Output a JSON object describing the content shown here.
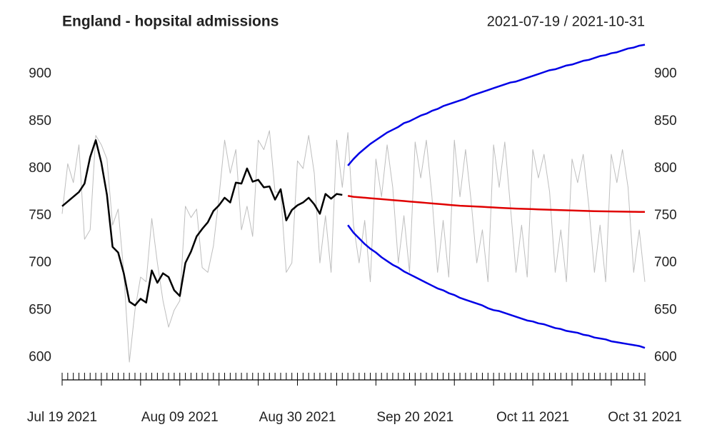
{
  "chart_data": {
    "type": "line",
    "title": "England - hopsital admissions",
    "subtitle": "2021-07-19 / 2021-10-31",
    "x": [
      "2021-07-19",
      "2021-07-20",
      "2021-07-21",
      "2021-07-22",
      "2021-07-23",
      "2021-07-24",
      "2021-07-25",
      "2021-07-26",
      "2021-07-27",
      "2021-07-28",
      "2021-07-29",
      "2021-07-30",
      "2021-07-31",
      "2021-08-01",
      "2021-08-02",
      "2021-08-03",
      "2021-08-04",
      "2021-08-05",
      "2021-08-06",
      "2021-08-07",
      "2021-08-08",
      "2021-08-09",
      "2021-08-10",
      "2021-08-11",
      "2021-08-12",
      "2021-08-13",
      "2021-08-14",
      "2021-08-15",
      "2021-08-16",
      "2021-08-17",
      "2021-08-18",
      "2021-08-19",
      "2021-08-20",
      "2021-08-21",
      "2021-08-22",
      "2021-08-23",
      "2021-08-24",
      "2021-08-25",
      "2021-08-26",
      "2021-08-27",
      "2021-08-28",
      "2021-08-29",
      "2021-08-30",
      "2021-08-31",
      "2021-09-01",
      "2021-09-02",
      "2021-09-03",
      "2021-09-04",
      "2021-09-05",
      "2021-09-06",
      "2021-09-07",
      "2021-09-08",
      "2021-09-09",
      "2021-09-10",
      "2021-09-11",
      "2021-09-12",
      "2021-09-13",
      "2021-09-14",
      "2021-09-15",
      "2021-09-16",
      "2021-09-17",
      "2021-09-18",
      "2021-09-19",
      "2021-09-20",
      "2021-09-21",
      "2021-09-22",
      "2021-09-23",
      "2021-09-24",
      "2021-09-25",
      "2021-09-26",
      "2021-09-27",
      "2021-09-28",
      "2021-09-29",
      "2021-09-30",
      "2021-10-01",
      "2021-10-02",
      "2021-10-03",
      "2021-10-04",
      "2021-10-05",
      "2021-10-06",
      "2021-10-07",
      "2021-10-08",
      "2021-10-09",
      "2021-10-10",
      "2021-10-11",
      "2021-10-12",
      "2021-10-13",
      "2021-10-14",
      "2021-10-15",
      "2021-10-16",
      "2021-10-17",
      "2021-10-18",
      "2021-10-19",
      "2021-10-20",
      "2021-10-21",
      "2021-10-22",
      "2021-10-23",
      "2021-10-24",
      "2021-10-25",
      "2021-10-26",
      "2021-10-27",
      "2021-10-28",
      "2021-10-29",
      "2021-10-30",
      "2021-10-31"
    ],
    "xlim": [
      "2021-07-19",
      "2021-10-31"
    ],
    "xticks": [
      {
        "value": "2021-07-19",
        "label": "Jul 19 2021"
      },
      {
        "value": "2021-08-09",
        "label": "Aug 09 2021"
      },
      {
        "value": "2021-08-30",
        "label": "Aug 30 2021"
      },
      {
        "value": "2021-09-20",
        "label": "Sep 20 2021"
      },
      {
        "value": "2021-10-11",
        "label": "Oct 11 2021"
      },
      {
        "value": "2021-10-31",
        "label": "Oct 31 2021"
      }
    ],
    "ylim": [
      589,
      933
    ],
    "yticks": [
      600,
      650,
      700,
      750,
      800,
      850,
      900
    ],
    "series": [
      {
        "color": "#bebebe",
        "width": 1,
        "values": [
          752,
          805,
          785,
          825,
          725,
          735,
          835,
          825,
          810,
          740,
          757,
          690,
          595,
          650,
          685,
          680,
          747,
          700,
          660,
          632,
          650,
          660,
          760,
          748,
          757,
          695,
          690,
          718,
          770,
          830,
          795,
          820,
          735,
          760,
          728,
          830,
          820,
          840,
          775,
          775,
          690,
          700,
          808,
          800,
          835,
          795,
          700,
          750,
          690,
          830,
          780,
          838,
          740,
          700,
          745,
          680,
          810,
          770,
          825,
          780,
          700,
          750,
          690,
          828,
          790,
          830,
          770,
          690,
          745,
          685,
          830,
          770,
          820,
          765,
          700,
          735,
          680,
          825,
          780,
          828,
          760,
          690,
          740,
          685,
          820,
          790,
          815,
          775,
          690,
          735,
          680,
          810,
          785,
          815,
          760,
          690,
          740,
          680,
          815,
          785,
          820,
          780,
          690,
          735,
          680
        ]
      },
      {
        "color": "#000000",
        "width": 2.5,
        "values": [
          760,
          765,
          770,
          775,
          784,
          812,
          830,
          806,
          772,
          717,
          711,
          689,
          659,
          655,
          662,
          658,
          692,
          679,
          689,
          685,
          671,
          665,
          700,
          712,
          728,
          736,
          743,
          755,
          761,
          769,
          764,
          785,
          784,
          800,
          786,
          788,
          780,
          781,
          767,
          778,
          745,
          756,
          761,
          764,
          769,
          762,
          752,
          773,
          768,
          773,
          772,
          null,
          null,
          null,
          null,
          null,
          null,
          null,
          null,
          null,
          null,
          null,
          null,
          null,
          null,
          null,
          null,
          null,
          null,
          null,
          null,
          null,
          null,
          null,
          null,
          null,
          null,
          null,
          null,
          null,
          null,
          null,
          null,
          null,
          null,
          null,
          null,
          null,
          null,
          null,
          null,
          null,
          null,
          null,
          null,
          null,
          null,
          null,
          null,
          null,
          null,
          null,
          null,
          null,
          null
        ]
      },
      {
        "color": "#e00000",
        "width": 2.5,
        "values": [
          null,
          null,
          null,
          null,
          null,
          null,
          null,
          null,
          null,
          null,
          null,
          null,
          null,
          null,
          null,
          null,
          null,
          null,
          null,
          null,
          null,
          null,
          null,
          null,
          null,
          null,
          null,
          null,
          null,
          null,
          null,
          null,
          null,
          null,
          null,
          null,
          null,
          null,
          null,
          null,
          null,
          null,
          null,
          null,
          null,
          null,
          null,
          null,
          null,
          null,
          null,
          771,
          770,
          769.5,
          769,
          768.5,
          768,
          767.5,
          767,
          766.5,
          766,
          765.5,
          765,
          764.5,
          764,
          763.5,
          763,
          762.5,
          762,
          761.5,
          761,
          760.5,
          760.2,
          760,
          759.7,
          759.4,
          759,
          758.7,
          758.4,
          758.1,
          757.8,
          757.5,
          757.3,
          757.1,
          756.9,
          756.7,
          756.5,
          756.3,
          756.1,
          755.9,
          755.7,
          755.5,
          755.3,
          755.1,
          755,
          754.8,
          754.7,
          754.6,
          754.5,
          754.4,
          754.3,
          754.2,
          754.1,
          754,
          754
        ]
      },
      {
        "color": "#0000e6",
        "width": 2.5,
        "values": [
          null,
          null,
          null,
          null,
          null,
          null,
          null,
          null,
          null,
          null,
          null,
          null,
          null,
          null,
          null,
          null,
          null,
          null,
          null,
          null,
          null,
          null,
          null,
          null,
          null,
          null,
          null,
          null,
          null,
          null,
          null,
          null,
          null,
          null,
          null,
          null,
          null,
          null,
          null,
          null,
          null,
          null,
          null,
          null,
          null,
          null,
          null,
          null,
          null,
          null,
          null,
          803,
          810,
          816,
          821,
          826,
          830,
          834,
          838,
          841,
          844,
          848,
          850,
          853,
          856,
          858,
          861,
          863,
          866,
          868,
          870,
          872,
          874,
          877,
          879,
          881,
          883,
          885,
          887,
          889,
          891,
          892,
          894,
          896,
          898,
          900,
          902,
          904,
          905,
          907,
          909,
          910,
          912,
          914,
          915,
          917,
          919,
          920,
          922,
          923,
          925,
          927,
          928,
          930,
          931
        ]
      },
      {
        "color": "#0000e6",
        "width": 2.5,
        "values": [
          null,
          null,
          null,
          null,
          null,
          null,
          null,
          null,
          null,
          null,
          null,
          null,
          null,
          null,
          null,
          null,
          null,
          null,
          null,
          null,
          null,
          null,
          null,
          null,
          null,
          null,
          null,
          null,
          null,
          null,
          null,
          null,
          null,
          null,
          null,
          null,
          null,
          null,
          null,
          null,
          null,
          null,
          null,
          null,
          null,
          null,
          null,
          null,
          null,
          null,
          null,
          740,
          732,
          726,
          720,
          715,
          711,
          706,
          702,
          698,
          695,
          691,
          688,
          685,
          682,
          679,
          676,
          673,
          671,
          668,
          666,
          663,
          661,
          659,
          657,
          655,
          652,
          650,
          649,
          647,
          645,
          643,
          641,
          639,
          638,
          636,
          635,
          633,
          631,
          630,
          628,
          627,
          626,
          624,
          623,
          621,
          620,
          619,
          617,
          616,
          615,
          614,
          613,
          612,
          610
        ]
      }
    ]
  }
}
